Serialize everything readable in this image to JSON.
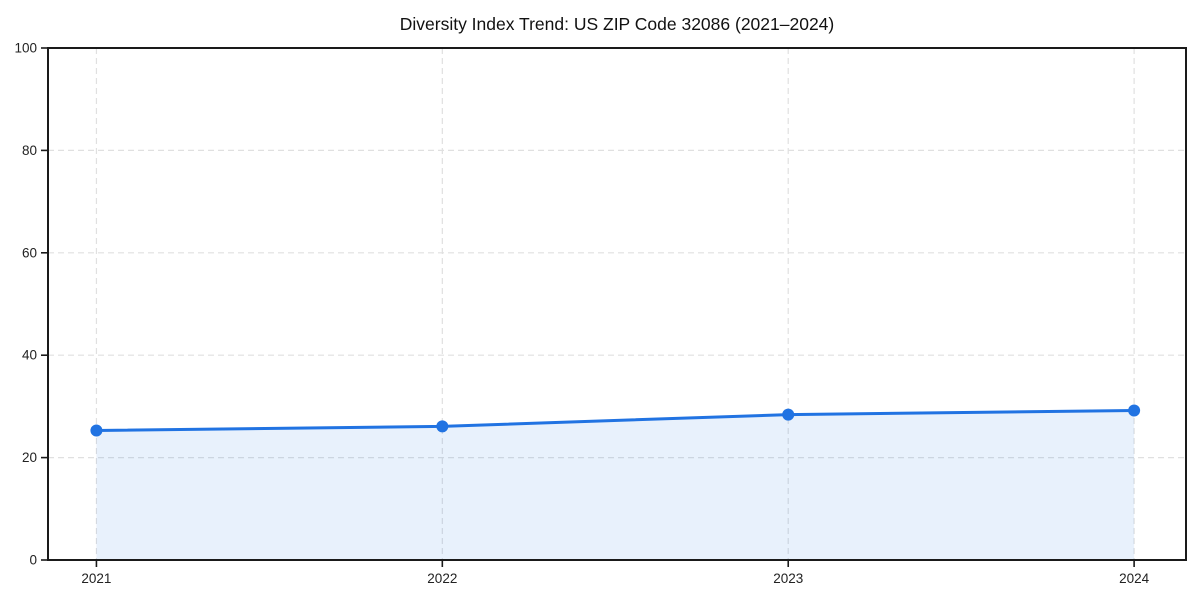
{
  "page": {
    "background": "#ffffff"
  },
  "chart_data": {
    "type": "line",
    "title": "Diversity Index Trend: US ZIP Code 32086 (2021–2024)",
    "x": [
      2021,
      2022,
      2023,
      2024
    ],
    "series": [
      {
        "name": "Diversity Index",
        "values": [
          25.3,
          26.1,
          28.4,
          29.2
        ]
      }
    ],
    "xticks": [
      2021,
      2022,
      2023,
      2024
    ],
    "xtick_labels": [
      "2021",
      "2022",
      "2023",
      "2024"
    ],
    "yticks": [
      0,
      20,
      40,
      60,
      80,
      100
    ],
    "ytick_labels": [
      "0",
      "20",
      "40",
      "60",
      "80",
      "100"
    ],
    "xlim": [
      2020.86,
      2024.15
    ],
    "ylim": [
      0,
      100
    ],
    "xlabel": "",
    "ylabel": "",
    "grid": "dashed",
    "legend_position": "none",
    "area_fill": true,
    "marker": "circle",
    "colors": {
      "line": "#2173e2",
      "marker": "#2173e2",
      "area": "rgba(33, 115, 226, 0.10)",
      "grid": "#e0e0e0",
      "spine": "#1a1a1a",
      "title": "#111111",
      "tick_label": "#222222"
    }
  }
}
